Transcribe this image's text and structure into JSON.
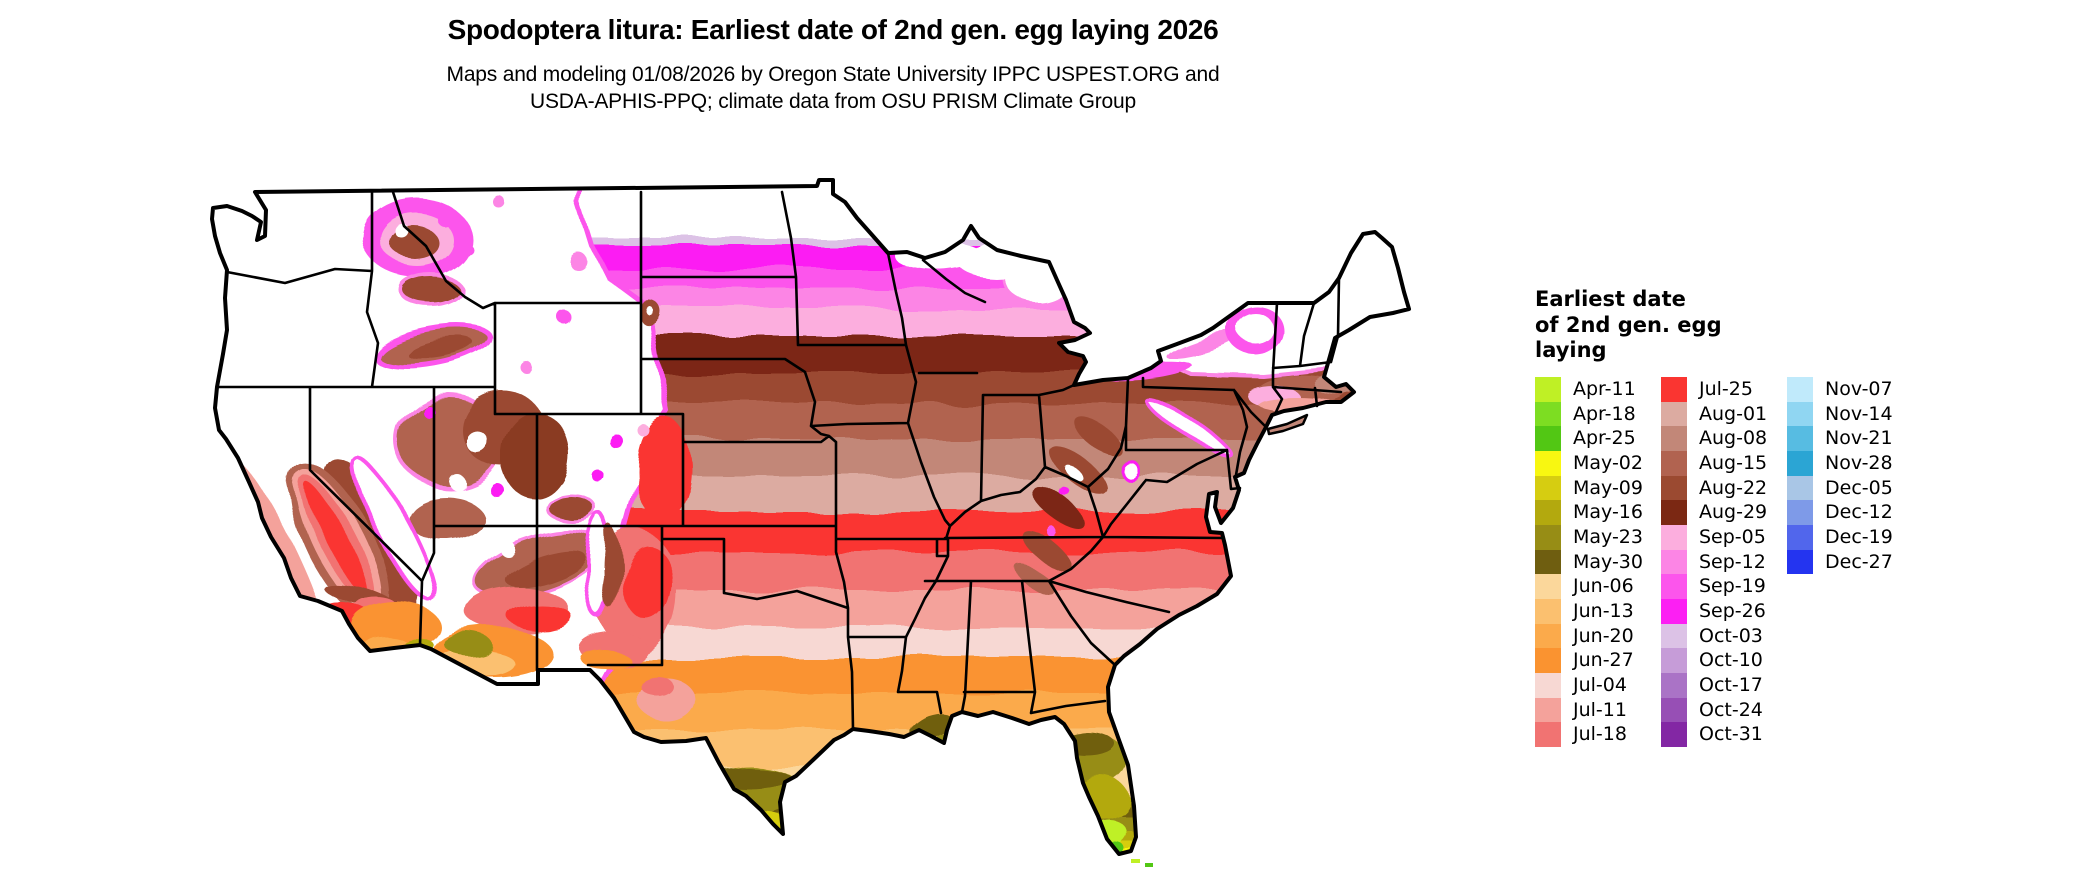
{
  "header": {
    "title": "Spodoptera litura: Earliest date of 2nd gen. egg laying 2026",
    "subtitle_line1": "Maps and modeling 01/08/2026 by Oregon State University IPPC USPEST.ORG and",
    "subtitle_line2": "USDA-APHIS-PPQ; climate data from OSU PRISM Climate Group"
  },
  "legend": {
    "title": "Earliest date\nof 2nd gen. egg\nlaying",
    "columns": [
      [
        {
          "label": "Apr-11",
          "color": "#bff025"
        },
        {
          "label": "Apr-18",
          "color": "#7ddd22"
        },
        {
          "label": "Apr-25",
          "color": "#52c714"
        },
        {
          "label": "May-02",
          "color": "#f8f711"
        },
        {
          "label": "May-09",
          "color": "#d6cd11"
        },
        {
          "label": "May-16",
          "color": "#b3a90e"
        },
        {
          "label": "May-23",
          "color": "#978d15"
        },
        {
          "label": "May-30",
          "color": "#6f5e10"
        },
        {
          "label": "Jun-06",
          "color": "#fbd79b"
        },
        {
          "label": "Jun-13",
          "color": "#fbc06f"
        },
        {
          "label": "Jun-20",
          "color": "#fbaa4b"
        },
        {
          "label": "Jun-27",
          "color": "#fa9330"
        },
        {
          "label": "Jul-04",
          "color": "#f7d8d3"
        },
        {
          "label": "Jul-11",
          "color": "#f4a29b"
        },
        {
          "label": "Jul-18",
          "color": "#f17372"
        }
      ],
      [
        {
          "label": "Jul-25",
          "color": "#fa3531"
        },
        {
          "label": "Aug-01",
          "color": "#dcaba1"
        },
        {
          "label": "Aug-08",
          "color": "#c28778"
        },
        {
          "label": "Aug-15",
          "color": "#b16350"
        },
        {
          "label": "Aug-22",
          "color": "#9b4a31"
        },
        {
          "label": "Aug-29",
          "color": "#7b2813"
        },
        {
          "label": "Sep-05",
          "color": "#fcaede"
        },
        {
          "label": "Sep-12",
          "color": "#fc85e5"
        },
        {
          "label": "Sep-19",
          "color": "#fc55ec"
        },
        {
          "label": "Sep-26",
          "color": "#fc1ff3"
        },
        {
          "label": "Oct-03",
          "color": "#dcc2e6"
        },
        {
          "label": "Oct-10",
          "color": "#c69cd8"
        },
        {
          "label": "Oct-17",
          "color": "#aa73c6"
        },
        {
          "label": "Oct-24",
          "color": "#974fb5"
        },
        {
          "label": "Oct-31",
          "color": "#8327a4"
        }
      ],
      [
        {
          "label": "Nov-07",
          "color": "#c0eafb"
        },
        {
          "label": "Nov-14",
          "color": "#90d6f2"
        },
        {
          "label": "Nov-21",
          "color": "#57bce2"
        },
        {
          "label": "Nov-28",
          "color": "#2ba5d4"
        },
        {
          "label": "Dec-05",
          "color": "#a9c6e6"
        },
        {
          "label": "Dec-12",
          "color": "#7e9ae8"
        },
        {
          "label": "Dec-19",
          "color": "#5166ec"
        },
        {
          "label": "Dec-27",
          "color": "#2434f0"
        }
      ]
    ]
  }
}
